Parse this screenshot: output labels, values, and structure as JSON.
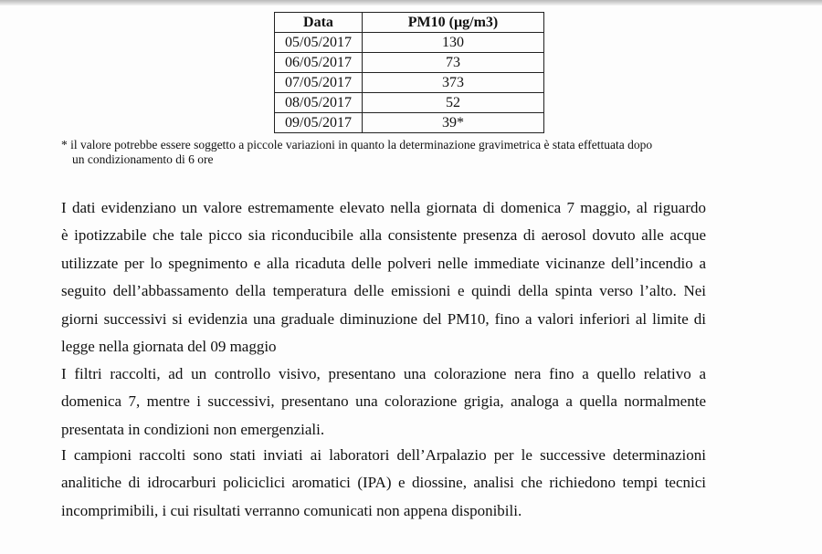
{
  "table": {
    "headers": [
      "Data",
      "PM10  (µg/m3)"
    ],
    "rows": [
      [
        "05/05/2017",
        "130"
      ],
      [
        "06/05/2017",
        "73"
      ],
      [
        "07/05/2017",
        "373"
      ],
      [
        "08/05/2017",
        "52"
      ],
      [
        "09/05/2017",
        "39*"
      ]
    ]
  },
  "footnote": [
    "* il valore potrebbe essere soggetto a piccole variazioni in quanto la determinazione gravimetrica è stata effettuata  dopo",
    "un condizionamento di 6 ore"
  ],
  "paragraphs": [
    [
      "I dati evidenziano un valore estremamente elevato nella giornata di domenica 7 maggio, al riguardo",
      "è ipotizzabile che tale picco sia riconducibile alla consistente presenza di aerosol dovuto alle acque",
      "utilizzate per lo spegnimento e alla ricaduta delle polveri nelle immediate vicinanze dell’incendio a",
      "seguito dell’abbassamento della temperatura delle emissioni e quindi della spinta verso l’alto. Nei",
      "giorni successivi si evidenzia una graduale diminuzione del PM10, fino a valori inferiori al limite di",
      "legge nella giornata del 09 maggio"
    ],
    [
      "I filtri raccolti, ad un controllo visivo, presentano una colorazione nera fino a quello relativo a",
      "domenica 7, mentre i successivi, presentano una colorazione grigia, analoga a quella normalmente",
      "presentata in condizioni non emergenziali."
    ],
    [
      "I campioni raccolti sono stati inviati ai laboratori dell’Arpalazio per le successive determinazioni",
      "analitiche di idrocarburi policiclici aromatici (IPA) e diossine, analisi che richiedono tempi tecnici",
      "incomprimibili, i cui risultati verranno comunicati non appena disponibili."
    ]
  ]
}
